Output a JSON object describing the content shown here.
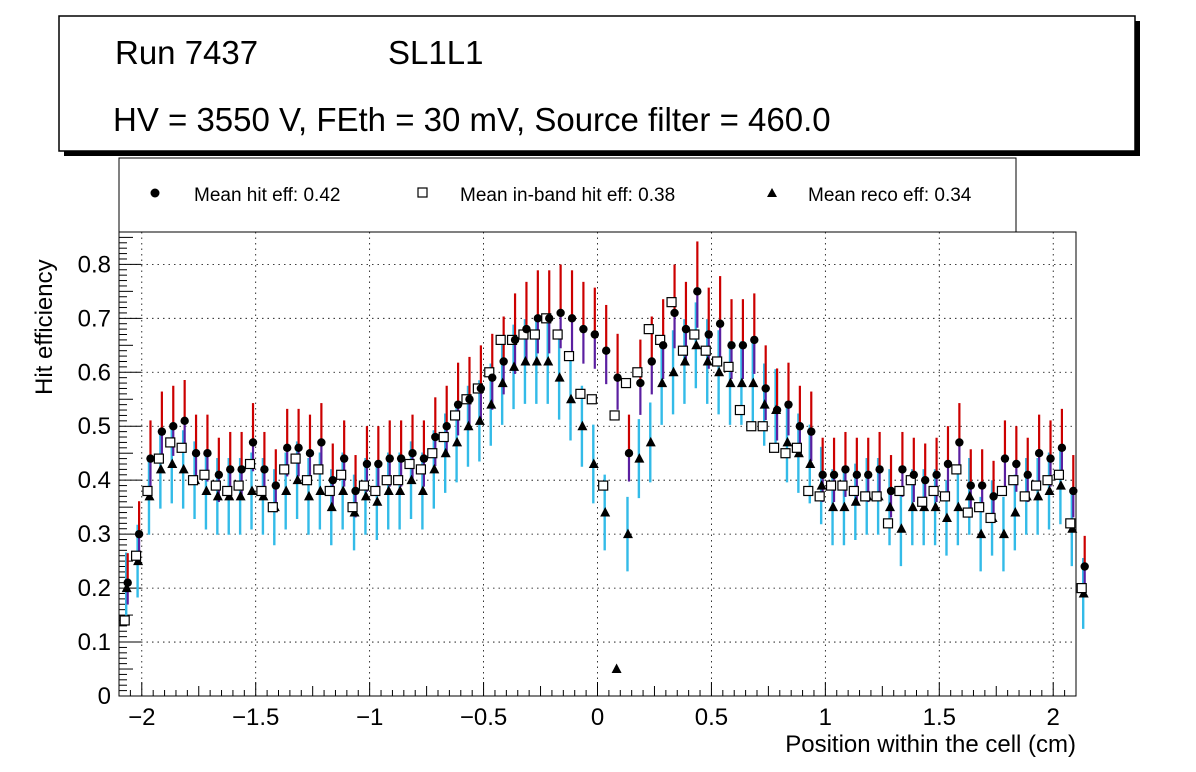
{
  "header": {
    "run_label": "Run 7437",
    "layer_label": "SL1L1",
    "conditions": "HV = 3550 V, FEth = 30 mV, Source filter = 460.0"
  },
  "legend": {
    "hit": "Mean hit  eff: 0.42",
    "inband": "Mean in-band hit eff: 0.38",
    "reco": "Mean reco eff: 0.34"
  },
  "colors": {
    "hit_err_up": "#cc0000",
    "hit_err_down": "#5b1fa0",
    "reco_err": "#33bbe8",
    "grid": "#000000"
  },
  "chart_data": {
    "type": "scatter",
    "title": "",
    "xlabel": "Position within the cell (cm)",
    "ylabel": "Hit efficiency",
    "xlim": [
      -2.1,
      2.1
    ],
    "ylim": [
      0,
      0.86
    ],
    "xticks": [
      -2,
      -1.5,
      -1,
      -0.5,
      0,
      0.5,
      1,
      1.5,
      2
    ],
    "xtick_labels": [
      "−2",
      "−1.5",
      "−1",
      "−0.5",
      "0",
      "0.5",
      "1",
      "1.5",
      "2"
    ],
    "yticks": [
      0,
      0.1,
      0.2,
      0.3,
      0.4,
      0.5,
      0.6,
      0.7,
      0.8
    ],
    "ytick_labels": [
      "0",
      "0.1",
      "0.2",
      "0.3",
      "0.4",
      "0.5",
      "0.6",
      "0.7",
      "0.8"
    ],
    "x_start": -2.075,
    "x_step": 0.05,
    "series": [
      {
        "name": "hit",
        "marker": "circle",
        "values": [
          0.21,
          0.3,
          0.44,
          0.49,
          0.5,
          0.51,
          0.45,
          0.45,
          0.41,
          0.42,
          0.42,
          0.47,
          0.42,
          0.39,
          0.46,
          0.46,
          0.45,
          0.47,
          0.4,
          0.44,
          0.38,
          0.43,
          0.43,
          0.44,
          0.44,
          0.45,
          0.44,
          0.48,
          0.5,
          0.54,
          0.55,
          0.57,
          0.59,
          0.62,
          0.66,
          0.68,
          0.7,
          0.7,
          0.71,
          0.7,
          0.68,
          0.67,
          0.64,
          0.59,
          0.45,
          0.58,
          0.62,
          0.65,
          0.71,
          0.68,
          0.75,
          0.67,
          0.69,
          0.65,
          0.65,
          0.66,
          0.57,
          0.53,
          0.54,
          0.5,
          0.49,
          0.41,
          0.41,
          0.42,
          0.41,
          0.41,
          0.42,
          0.38,
          0.42,
          0.41,
          0.4,
          0.41,
          0.43,
          0.47,
          0.39,
          0.39,
          0.37,
          0.44,
          0.43,
          0.41,
          0.45,
          0.44,
          0.46,
          0.38,
          0.24
        ]
      },
      {
        "name": "inband",
        "marker": "square",
        "values": [
          0.14,
          0.26,
          0.38,
          0.44,
          0.47,
          0.46,
          0.4,
          0.41,
          0.39,
          0.38,
          0.39,
          0.43,
          0.38,
          0.35,
          0.42,
          0.44,
          0.4,
          0.42,
          0.38,
          0.41,
          0.35,
          0.39,
          0.38,
          0.4,
          0.4,
          0.43,
          0.42,
          0.45,
          0.48,
          0.52,
          0.55,
          0.57,
          0.6,
          0.66,
          0.66,
          0.67,
          0.67,
          0.7,
          0.67,
          0.63,
          0.56,
          0.55,
          0.39,
          0.52,
          0.58,
          0.6,
          0.68,
          0.66,
          0.73,
          0.64,
          0.67,
          0.64,
          0.62,
          0.61,
          0.53,
          0.5,
          0.5,
          0.46,
          0.45,
          0.46,
          0.38,
          0.37,
          0.39,
          0.39,
          0.38,
          0.37,
          0.37,
          0.32,
          0.38,
          0.4,
          0.36,
          0.38,
          0.37,
          0.42,
          0.34,
          0.35,
          0.33,
          0.38,
          0.4,
          0.37,
          0.39,
          0.4,
          0.41,
          0.32,
          0.2
        ]
      },
      {
        "name": "reco",
        "marker": "triangle",
        "values": [
          0.2,
          0.25,
          0.37,
          0.42,
          0.43,
          0.42,
          0.4,
          0.38,
          0.37,
          0.37,
          0.37,
          0.38,
          0.37,
          0.35,
          0.38,
          0.4,
          0.37,
          0.38,
          0.35,
          0.38,
          0.34,
          0.37,
          0.36,
          0.38,
          0.38,
          0.4,
          0.38,
          0.42,
          0.45,
          0.47,
          0.5,
          0.51,
          0.54,
          0.58,
          0.61,
          0.62,
          0.62,
          0.62,
          0.59,
          0.55,
          0.5,
          0.43,
          0.34,
          0.05,
          0.3,
          0.44,
          0.47,
          0.58,
          0.6,
          0.62,
          0.65,
          0.62,
          0.6,
          0.58,
          0.58,
          0.58,
          0.54,
          0.53,
          0.47,
          0.45,
          0.43,
          0.39,
          0.35,
          0.35,
          0.36,
          0.37,
          0.37,
          0.35,
          0.31,
          0.35,
          0.35,
          0.35,
          0.33,
          0.35,
          0.37,
          0.3,
          0.33,
          0.3,
          0.34,
          0.37,
          0.37,
          0.38,
          0.39,
          0.31,
          0.19
        ]
      }
    ]
  }
}
